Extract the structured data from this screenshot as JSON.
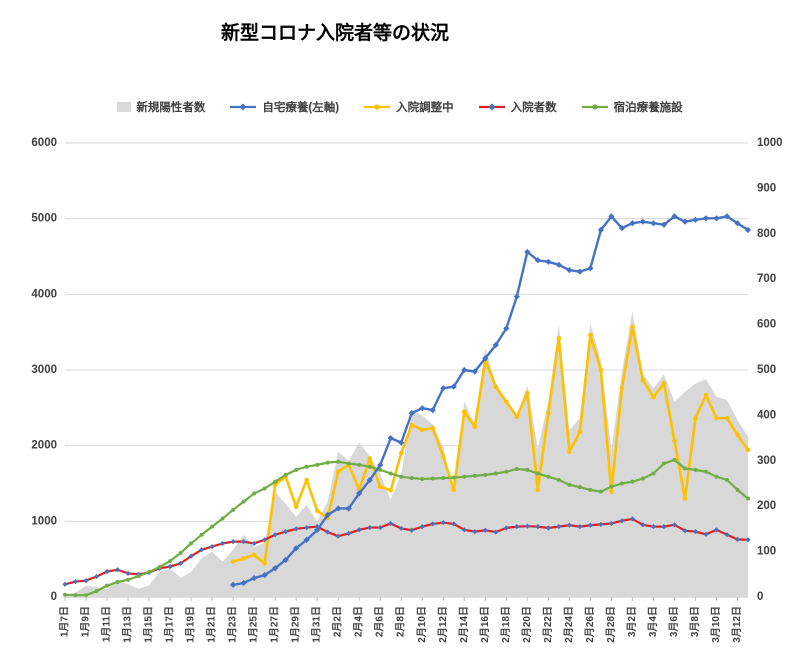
{
  "title": "新型コロナ入院者等の状況",
  "legend": {
    "items": [
      {
        "id": "new-positives",
        "label": "新規陽性者数",
        "swatch": "area",
        "color": "#d8d8d8"
      },
      {
        "id": "home-care",
        "label": "自宅療養(左軸)",
        "swatch": "line",
        "marker": "diamond",
        "color": "#4472c4",
        "marker_color": "#4472c4"
      },
      {
        "id": "awaiting-hospitalization",
        "label": "入院調整中",
        "swatch": "line",
        "marker": "circle",
        "color": "#ffc000",
        "marker_color": "#ffc000"
      },
      {
        "id": "hospitalized",
        "label": "入院者数",
        "swatch": "line",
        "marker": "diamond",
        "color": "#e02020",
        "marker_color": "#4472c4"
      },
      {
        "id": "lodging-facility",
        "label": "宿泊療養施設",
        "swatch": "line",
        "marker": "circle",
        "color": "#70ad47",
        "marker_color": "#70ad47"
      }
    ]
  },
  "chart_data": {
    "type": "combo",
    "title": "新型コロナ入院者等の状況",
    "x_label_every": 2,
    "grid": true,
    "legend_position": "top",
    "left_axis": {
      "min": 0,
      "max": 6000,
      "step": 1000,
      "ticks": [
        "0",
        "1000",
        "2000",
        "3000",
        "4000",
        "5000",
        "6000"
      ]
    },
    "right_axis": {
      "min": 0,
      "max": 1000,
      "step": 100,
      "ticks": [
        "0",
        "100",
        "200",
        "300",
        "400",
        "500",
        "600",
        "700",
        "800",
        "900",
        "1000"
      ]
    },
    "categories": [
      "1月7日",
      "1月8日",
      "1月9日",
      "1月10日",
      "1月11日",
      "1月12日",
      "1月13日",
      "1月14日",
      "1月15日",
      "1月16日",
      "1月17日",
      "1月18日",
      "1月19日",
      "1月20日",
      "1月21日",
      "1月22日",
      "1月23日",
      "1月24日",
      "1月25日",
      "1月26日",
      "1月27日",
      "1月28日",
      "1月29日",
      "1月30日",
      "1月31日",
      "2月1日",
      "2月2日",
      "2月3日",
      "2月4日",
      "2月5日",
      "2月6日",
      "2月7日",
      "2月8日",
      "2月9日",
      "2月10日",
      "2月11日",
      "2月12日",
      "2月13日",
      "2月14日",
      "2月15日",
      "2月16日",
      "2月17日",
      "2月18日",
      "2月19日",
      "2月20日",
      "2月21日",
      "2月22日",
      "2月23日",
      "2月24日",
      "2月25日",
      "2月26日",
      "2月27日",
      "2月28日",
      "3月1日",
      "3月2日",
      "3月3日",
      "3月4日",
      "3月5日",
      "3月6日",
      "3月7日",
      "3月8日",
      "3月9日",
      "3月10日",
      "3月11日",
      "3月12日",
      "3月13日"
    ],
    "series": [
      {
        "id": "new-positives",
        "name": "新規陽性者数",
        "type": "area",
        "axis": "right",
        "color": "#d8d8d8",
        "values": [
          5,
          10,
          25,
          22,
          18,
          35,
          28,
          18,
          26,
          55,
          63,
          42,
          55,
          85,
          100,
          78,
          104,
          137,
          110,
          120,
          232,
          205,
          177,
          203,
          166,
          210,
          320,
          300,
          340,
          310,
          270,
          215,
          270,
          412,
          400,
          380,
          330,
          230,
          430,
          380,
          548,
          470,
          435,
          400,
          465,
          327,
          430,
          600,
          368,
          394,
          603,
          520,
          324,
          496,
          630,
          490,
          460,
          490,
          430,
          452,
          470,
          480,
          441,
          434,
          390,
          353
        ]
      },
      {
        "id": "awaiting-hospitalization",
        "name": "入院調整中",
        "type": "line",
        "axis": "right",
        "color": "#ffc000",
        "marker": "circle",
        "marker_color": "#ffc000",
        "line_width": 2.6,
        "marker_size": 2.3,
        "values": [
          null,
          null,
          null,
          null,
          null,
          null,
          null,
          null,
          null,
          null,
          null,
          null,
          null,
          null,
          null,
          null,
          78,
          85,
          93,
          74,
          247,
          265,
          199,
          258,
          190,
          174,
          276,
          291,
          236,
          305,
          243,
          235,
          317,
          379,
          368,
          372,
          309,
          236,
          408,
          375,
          522,
          463,
          430,
          397,
          449,
          236,
          405,
          570,
          320,
          364,
          577,
          500,
          232,
          460,
          595,
          478,
          440,
          471,
          344,
          217,
          394,
          445,
          394,
          394,
          357,
          324
        ]
      },
      {
        "id": "hospitalized",
        "name": "入院者数",
        "type": "line",
        "axis": "right",
        "color": "#e02020",
        "marker": "diamond",
        "marker_color": "#4472c4",
        "line_width": 2.2,
        "marker_size": 2.6,
        "values": [
          28,
          34,
          36,
          45,
          56,
          60,
          52,
          50,
          54,
          63,
          67,
          74,
          90,
          104,
          111,
          118,
          122,
          122,
          118,
          126,
          137,
          144,
          150,
          153,
          155,
          143,
          134,
          140,
          148,
          153,
          153,
          162,
          151,
          147,
          155,
          161,
          164,
          161,
          148,
          144,
          147,
          143,
          152,
          155,
          156,
          155,
          152,
          155,
          158,
          155,
          158,
          160,
          162,
          168,
          172,
          159,
          155,
          155,
          159,
          146,
          144,
          138,
          148,
          137,
          127,
          126
        ]
      },
      {
        "id": "lodging-facility",
        "name": "宿泊療養施設",
        "type": "line",
        "axis": "right",
        "color": "#70ad47",
        "marker": "circle",
        "marker_color": "#70ad47",
        "line_width": 2.2,
        "marker_size": 2,
        "values": [
          5,
          4,
          4,
          13,
          25,
          33,
          38,
          46,
          55,
          66,
          79,
          97,
          118,
          137,
          155,
          173,
          192,
          210,
          228,
          239,
          254,
          269,
          280,
          287,
          291,
          296,
          298,
          294,
          291,
          287,
          280,
          272,
          265,
          262,
          260,
          261,
          262,
          263,
          265,
          267,
          269,
          272,
          276,
          282,
          280,
          272,
          265,
          258,
          247,
          242,
          236,
          232,
          243,
          250,
          254,
          261,
          272,
          294,
          302,
          283,
          280,
          276,
          265,
          258,
          236,
          217
        ]
      },
      {
        "id": "home-care",
        "name": "自宅療養(左軸)",
        "type": "line",
        "axis": "left",
        "color": "#4472c4",
        "marker": "diamond",
        "marker_color": "#4472c4",
        "line_width": 2.4,
        "marker_size": 3.1,
        "values": [
          null,
          null,
          null,
          null,
          null,
          null,
          null,
          null,
          null,
          null,
          null,
          null,
          null,
          null,
          null,
          null,
          160,
          185,
          250,
          290,
          380,
          490,
          645,
          755,
          885,
          1085,
          1170,
          1170,
          1370,
          1545,
          1745,
          2100,
          2040,
          2430,
          2495,
          2470,
          2760,
          2780,
          3000,
          2980,
          3155,
          3330,
          3550,
          3970,
          4560,
          4450,
          4430,
          4390,
          4320,
          4300,
          4345,
          4850,
          5030,
          4875,
          4940,
          4960,
          4940,
          4920,
          5030,
          4960,
          4985,
          5005,
          5005,
          5030,
          4940,
          4850
        ]
      }
    ]
  }
}
